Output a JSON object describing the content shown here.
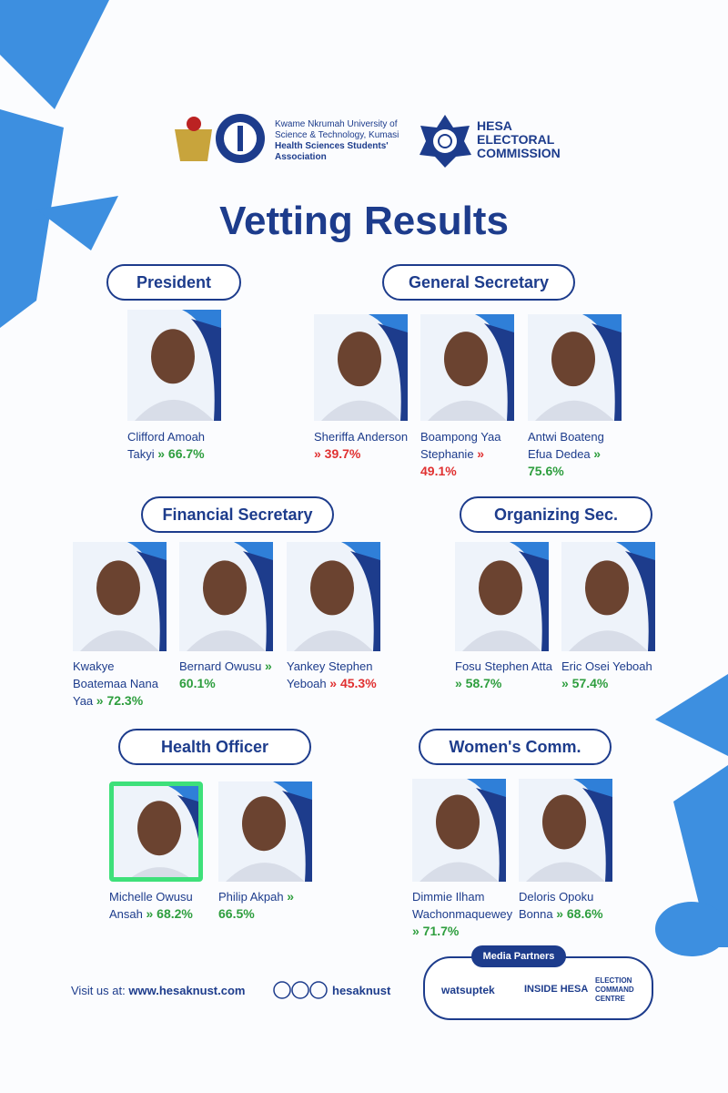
{
  "header": {
    "university": "Kwame Nkrumah University of Science & Technology, Kumasi",
    "association": "Health Sciences Students' Association",
    "commission": [
      "HESA",
      "ELECTORAL",
      "COMMISSION"
    ]
  },
  "title": "Vetting Results",
  "sections": [
    {
      "title": "President",
      "candidates": [
        {
          "name": "Clifford Amoah Takyi",
          "result": "» 66.7%",
          "color": "#2e9e3e"
        }
      ]
    },
    {
      "title": "General Secretary",
      "candidates": [
        {
          "name": "Sheriffa Anderson",
          "result": "» 39.7%",
          "color": "#e03131"
        },
        {
          "name": "Boampong Yaa Stephanie",
          "result": "» 49.1%",
          "color": "#e03131"
        },
        {
          "name": "Antwi Boateng Efua Dedea",
          "result": "» 75.6%",
          "color": "#2e9e3e"
        }
      ]
    },
    {
      "title": "Financial Secretary",
      "candidates": [
        {
          "name": "Kwakye Boatemaa Nana Yaa",
          "result": "» 72.3%",
          "color": "#2e9e3e"
        },
        {
          "name": "Bernard Owusu",
          "result": "» 60.1%",
          "color": "#2e9e3e"
        },
        {
          "name": "Yankey Stephen Yeboah",
          "result": "» 45.3%",
          "color": "#e03131"
        }
      ]
    },
    {
      "title": "Organizing Sec.",
      "candidates": [
        {
          "name": "Fosu Stephen Atta",
          "result": "» 58.7%",
          "color": "#2e9e3e"
        },
        {
          "name": "Eric Osei Yeboah",
          "result": "» 57.4%",
          "color": "#2e9e3e"
        }
      ]
    },
    {
      "title": "Health Officer",
      "candidates": [
        {
          "name": "Michelle Owusu Ansah",
          "result": "» 68.2%",
          "color": "#2e9e3e",
          "highlight": true
        },
        {
          "name": "Philip Akpah",
          "result": "» 66.5%",
          "color": "#2e9e3e"
        }
      ]
    },
    {
      "title": "Women's Comm.",
      "candidates": [
        {
          "name": "Dimmie Ilham Wachonmaquewey",
          "result": "» 71.7%",
          "color": "#2e9e3e"
        },
        {
          "name": "Deloris Opoku Bonna",
          "result": "» 68.6%",
          "color": "#2e9e3e"
        }
      ]
    }
  ],
  "footer": {
    "visit_label": "Visit us at:",
    "website": "www.hesaknust.com",
    "social": "hesaknust",
    "media_partners": "Media Partners",
    "partners": [
      "watsuptek",
      "INSIDE HESA",
      "ELECTION COMMAND CENTRE"
    ]
  }
}
